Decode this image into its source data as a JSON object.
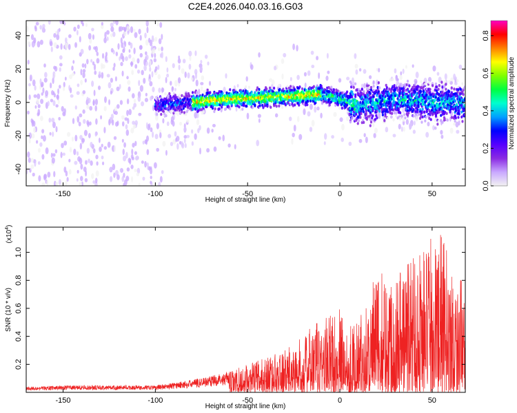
{
  "title": "C2E4.2026.040.03.16.G03",
  "colors": {
    "snr_line": "#ee2222",
    "colormap": [
      "#f2f2f2",
      "#c9a8ff",
      "#8a2be2",
      "#5500ff",
      "#0000ff",
      "#00a0ff",
      "#00ffd0",
      "#00ff40",
      "#80ff00",
      "#ffff00",
      "#ff8000",
      "#ff0000",
      "#ff00c0"
    ]
  },
  "chart_data": [
    {
      "type": "heatmap",
      "name": "spectrogram",
      "title": "C2E4.2026.040.03.16.G03",
      "xlabel": "Height of straight line (km)",
      "ylabel": "Frequency (Hz)",
      "xlim": [
        -170,
        68
      ],
      "ylim": [
        -50,
        49
      ],
      "xticks": [
        -150,
        -100,
        -50,
        0,
        50
      ],
      "yticks": [
        -40,
        -20,
        0,
        20,
        40
      ],
      "colorbar": {
        "label": "Normalized spectral amplitude",
        "range": [
          0.0,
          0.88
        ],
        "ticks": [
          0.0,
          0.2,
          0.4,
          0.6,
          0.8
        ]
      },
      "ridge": [
        {
          "x": -100,
          "f": -2
        },
        {
          "x": -80,
          "f": 0
        },
        {
          "x": -60,
          "f": 2
        },
        {
          "x": -40,
          "f": 3
        },
        {
          "x": -20,
          "f": 4
        },
        {
          "x": -10,
          "f": 5
        },
        {
          "x": 0,
          "f": 2
        },
        {
          "x": 10,
          "f": -2
        },
        {
          "x": 30,
          "f": 2
        },
        {
          "x": 50,
          "f": 0
        },
        {
          "x": 68,
          "f": 0
        }
      ]
    },
    {
      "type": "line",
      "name": "snr",
      "xlabel": "Height of straight line (km)",
      "ylabel": "SNR (10 * v/v)",
      "yscale_note": "(x10",
      "yscale_exp": "4",
      "xlim": [
        -170,
        68
      ],
      "ylim": [
        0,
        1.18
      ],
      "xticks": [
        -150,
        -100,
        -50,
        0,
        50
      ],
      "yticks": [
        0.2,
        0.4,
        0.6,
        0.8,
        1.0
      ],
      "ytick_labels": [
        "0.2",
        "0.4",
        "0.6",
        "0.8",
        "1.0"
      ],
      "envelope": [
        {
          "x": -170,
          "y": 0.04
        },
        {
          "x": -150,
          "y": 0.05
        },
        {
          "x": -120,
          "y": 0.05
        },
        {
          "x": -100,
          "y": 0.05
        },
        {
          "x": -90,
          "y": 0.07
        },
        {
          "x": -80,
          "y": 0.09
        },
        {
          "x": -70,
          "y": 0.12
        },
        {
          "x": -60,
          "y": 0.15
        },
        {
          "x": -50,
          "y": 0.2
        },
        {
          "x": -40,
          "y": 0.26
        },
        {
          "x": -30,
          "y": 0.3
        },
        {
          "x": -20,
          "y": 0.4
        },
        {
          "x": -10,
          "y": 0.55
        },
        {
          "x": 0,
          "y": 0.6
        },
        {
          "x": 5,
          "y": 0.5
        },
        {
          "x": 10,
          "y": 0.5
        },
        {
          "x": 15,
          "y": 0.7
        },
        {
          "x": 20,
          "y": 0.85
        },
        {
          "x": 30,
          "y": 0.9
        },
        {
          "x": 40,
          "y": 1.05
        },
        {
          "x": 50,
          "y": 1.1
        },
        {
          "x": 55,
          "y": 1.15
        },
        {
          "x": 60,
          "y": 0.95
        },
        {
          "x": 68,
          "y": 0.75
        }
      ]
    }
  ]
}
